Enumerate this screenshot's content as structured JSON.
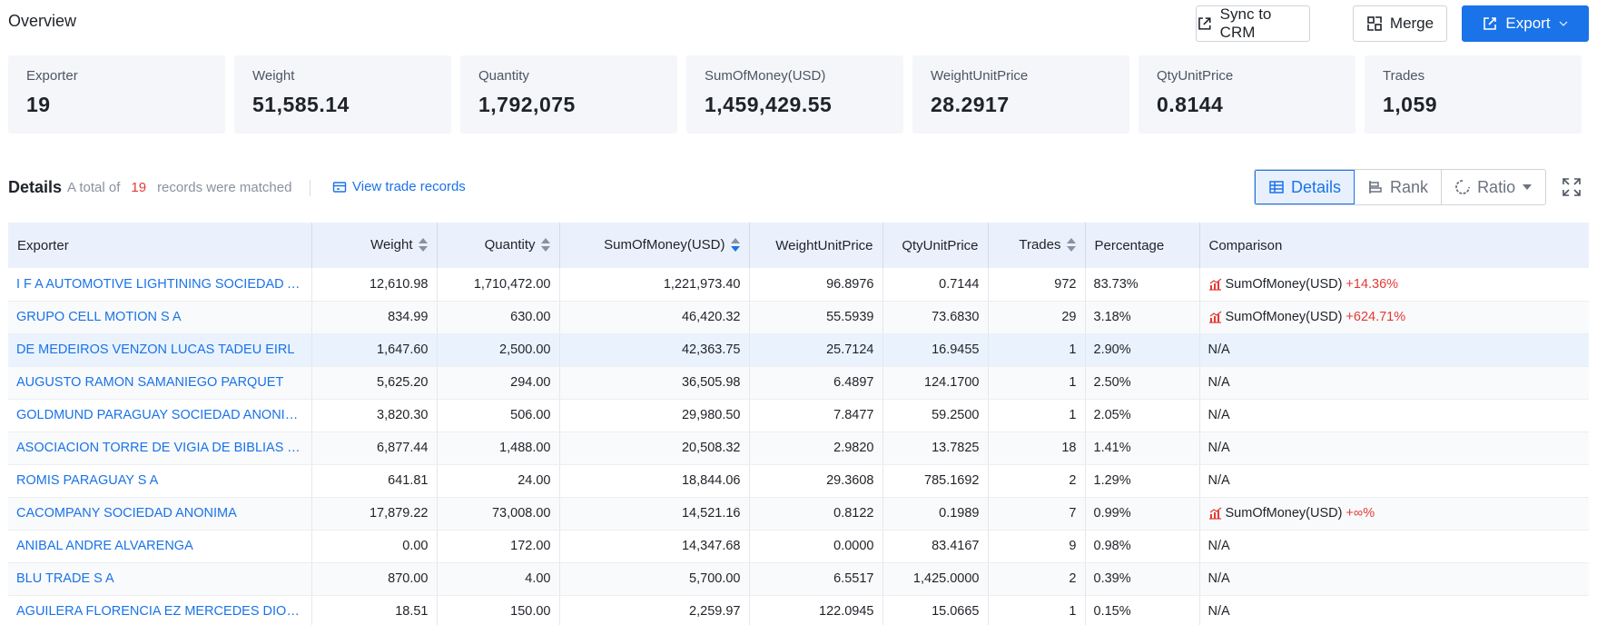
{
  "header": {
    "title": "Overview",
    "sync_label": "Sync to CRM",
    "merge_label": "Merge",
    "export_label": "Export"
  },
  "stats": [
    {
      "label": "Exporter",
      "value": "19"
    },
    {
      "label": "Weight",
      "value": "51,585.14"
    },
    {
      "label": "Quantity",
      "value": "1,792,075"
    },
    {
      "label": "SumOfMoney(USD)",
      "value": "1,459,429.55"
    },
    {
      "label": "WeightUnitPrice",
      "value": "28.2917"
    },
    {
      "label": "QtyUnitPrice",
      "value": "0.8144"
    },
    {
      "label": "Trades",
      "value": "1,059"
    }
  ],
  "details": {
    "title": "Details",
    "info_prefix": "A total of",
    "count": "19",
    "info_suffix": "records were matched",
    "view_link": "View trade records",
    "views": {
      "details": "Details",
      "rank": "Rank",
      "ratio": "Ratio"
    }
  },
  "table": {
    "columns": [
      "Exporter",
      "Weight",
      "Quantity",
      "SumOfMoney(USD)",
      "WeightUnitPrice",
      "QtyUnitPrice",
      "Trades",
      "Percentage",
      "Comparison"
    ],
    "rows": [
      {
        "exporter": "I F A AUTOMOTIVE LIGHTINING SOCIEDAD ANONI...",
        "weight": "12,610.98",
        "quantity": "1,710,472.00",
        "money": "1,221,973.40",
        "wup": "96.8976",
        "qup": "0.7144",
        "trades": "972",
        "pct": "83.73%",
        "cmp_label": "SumOfMoney(USD)",
        "cmp_value": "+14.36%"
      },
      {
        "exporter": "GRUPO CELL MOTION S A",
        "weight": "834.99",
        "quantity": "630.00",
        "money": "46,420.32",
        "wup": "55.5939",
        "qup": "73.6830",
        "trades": "29",
        "pct": "3.18%",
        "cmp_label": "SumOfMoney(USD)",
        "cmp_value": "+624.71%"
      },
      {
        "exporter": "DE MEDEIROS VENZON LUCAS TADEU EIRL",
        "weight": "1,647.60",
        "quantity": "2,500.00",
        "money": "42,363.75",
        "wup": "25.7124",
        "qup": "16.9455",
        "trades": "1",
        "pct": "2.90%",
        "cmp_na": "N/A"
      },
      {
        "exporter": "AUGUSTO RAMON SAMANIEGO PARQUET",
        "weight": "5,625.20",
        "quantity": "294.00",
        "money": "36,505.98",
        "wup": "6.4897",
        "qup": "124.1700",
        "trades": "1",
        "pct": "2.50%",
        "cmp_na": "N/A"
      },
      {
        "exporter": "GOLDMUND PARAGUAY SOCIEDAD ANONIMA",
        "weight": "3,820.30",
        "quantity": "506.00",
        "money": "29,980.50",
        "wup": "7.8477",
        "qup": "59.2500",
        "trades": "1",
        "pct": "2.05%",
        "cmp_na": "N/A"
      },
      {
        "exporter": "ASOCIACION TORRE DE VIGIA DE BIBLIAS Y TRATA...",
        "weight": "6,877.44",
        "quantity": "1,488.00",
        "money": "20,508.32",
        "wup": "2.9820",
        "qup": "13.7825",
        "trades": "18",
        "pct": "1.41%",
        "cmp_na": "N/A"
      },
      {
        "exporter": "ROMIS PARAGUAY S A",
        "weight": "641.81",
        "quantity": "24.00",
        "money": "18,844.06",
        "wup": "29.3608",
        "qup": "785.1692",
        "trades": "2",
        "pct": "1.29%",
        "cmp_na": "N/A"
      },
      {
        "exporter": "CACOMPANY SOCIEDAD ANONIMA",
        "weight": "17,879.22",
        "quantity": "73,008.00",
        "money": "14,521.16",
        "wup": "0.8122",
        "qup": "0.1989",
        "trades": "7",
        "pct": "0.99%",
        "cmp_label": "SumOfMoney(USD)",
        "cmp_value": "+∞%"
      },
      {
        "exporter": "ANIBAL ANDRE ALVARENGA",
        "weight": "0.00",
        "quantity": "172.00",
        "money": "14,347.68",
        "wup": "0.0000",
        "qup": "83.4167",
        "trades": "9",
        "pct": "0.98%",
        "cmp_na": "N/A"
      },
      {
        "exporter": "BLU TRADE S A",
        "weight": "870.00",
        "quantity": "4.00",
        "money": "5,700.00",
        "wup": "6.5517",
        "qup": "1,425.0000",
        "trades": "2",
        "pct": "0.39%",
        "cmp_na": "N/A"
      },
      {
        "exporter": "AGUILERA FLORENCIA EZ MERCEDES DIOSNEL",
        "weight": "18.51",
        "quantity": "150.00",
        "money": "2,259.97",
        "wup": "122.0945",
        "qup": "15.0665",
        "trades": "1",
        "pct": "0.15%",
        "cmp_na": "N/A"
      }
    ]
  },
  "colors": {
    "accent": "#1a73e8",
    "positive": "#e53935",
    "header_bg": "#eaf1fd",
    "card_bg": "#f4f6fa"
  }
}
